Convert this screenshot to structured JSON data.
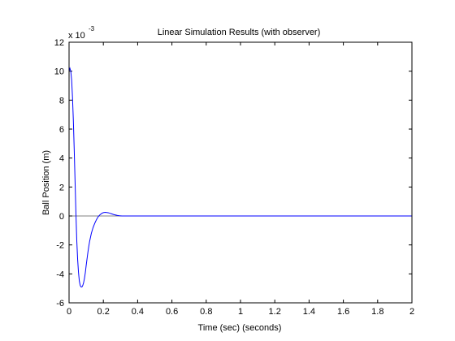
{
  "chart_data": {
    "type": "line",
    "title": "Linear Simulation Results (with observer)",
    "xlabel": "Time (sec) (seconds)",
    "ylabel": "Ball Position (m)",
    "exponent_base": "x 10",
    "exponent_power": "-3",
    "xlim": [
      0,
      2
    ],
    "ylim": [
      -6,
      12
    ],
    "x_ticks": [
      "0",
      "0.2",
      "0.4",
      "0.6",
      "0.8",
      "1",
      "1.2",
      "1.4",
      "1.6",
      "1.8",
      "2"
    ],
    "y_ticks": [
      "-6",
      "-4",
      "-2",
      "0",
      "2",
      "4",
      "6",
      "8",
      "10",
      "12"
    ],
    "grid": false,
    "zero_line": true,
    "line_color": "#0000ff",
    "zero_line_color": "#808080",
    "series": [
      {
        "x": [
          0,
          0.005,
          0.01,
          0.015,
          0.02,
          0.025,
          0.03,
          0.035,
          0.04,
          0.045,
          0.05,
          0.055,
          0.06,
          0.065,
          0.07,
          0.075,
          0.08,
          0.085,
          0.09,
          0.095,
          0.1,
          0.105,
          0.11,
          0.115,
          0.12,
          0.13,
          0.14,
          0.15,
          0.16,
          0.17,
          0.18,
          0.19,
          0.2,
          0.21,
          0.22,
          0.23,
          0.24,
          0.25,
          0.26,
          0.27,
          0.28,
          0.29,
          0.3,
          0.31,
          0.32,
          0.33,
          0.34,
          0.35,
          0.4,
          0.6,
          0.8,
          1.0,
          1.2,
          1.4,
          1.6,
          1.8,
          2.0
        ],
        "y": [
          10.0,
          10.2,
          10.0,
          9.4,
          8.2,
          6.6,
          4.6,
          2.4,
          0.2,
          -1.7,
          -3.0,
          -3.9,
          -4.5,
          -4.8,
          -4.9,
          -4.9,
          -4.8,
          -4.6,
          -4.3,
          -3.9,
          -3.4,
          -2.95,
          -2.5,
          -2.1,
          -1.75,
          -1.2,
          -0.8,
          -0.5,
          -0.25,
          -0.05,
          0.08,
          0.17,
          0.23,
          0.25,
          0.24,
          0.22,
          0.18,
          0.14,
          0.1,
          0.07,
          0.04,
          0.02,
          0.01,
          0.0,
          0.0,
          0.0,
          0.0,
          0.0,
          0.0,
          0.0,
          0.0,
          0.0,
          0.0,
          0.0,
          0.0,
          0.0,
          0.0
        ]
      }
    ]
  }
}
